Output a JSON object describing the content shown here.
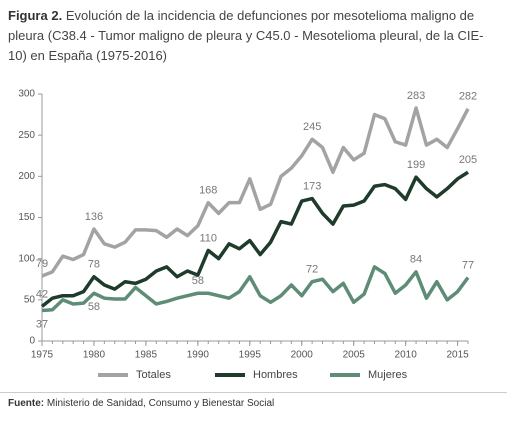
{
  "chart_data": {
    "type": "line",
    "title_label": "Figura 2.",
    "title": "Evolución de la incidencia de defunciones por mesotelioma maligno de pleura (C38.4 - Tumor maligno de pleura y C45.0 - Mesotelioma pleural, de la CIE-10) en España (1975-2016)",
    "source_label": "Fuente:",
    "source": "Ministerio de Sanidad, Consumo y Bienestar Social",
    "x": [
      1975,
      1976,
      1977,
      1978,
      1979,
      1980,
      1981,
      1982,
      1983,
      1984,
      1985,
      1986,
      1987,
      1988,
      1989,
      1990,
      1991,
      1992,
      1993,
      1994,
      1995,
      1996,
      1997,
      1998,
      1999,
      2000,
      2001,
      2002,
      2003,
      2004,
      2005,
      2006,
      2007,
      2008,
      2009,
      2010,
      2011,
      2012,
      2013,
      2014,
      2015,
      2016
    ],
    "xlim": [
      1975,
      2016
    ],
    "xticks": [
      1975,
      1980,
      1985,
      1990,
      1995,
      2000,
      2005,
      2010,
      2015
    ],
    "ylim": [
      0,
      300
    ],
    "yticks": [
      0,
      50,
      100,
      150,
      200,
      250,
      300
    ],
    "legend": "bottom",
    "series": [
      {
        "name": "Totales",
        "color": "#a3a3a3",
        "values": [
          79,
          84,
          103,
          99,
          105,
          136,
          118,
          114,
          120,
          135,
          135,
          134,
          126,
          136,
          128,
          140,
          168,
          155,
          168,
          168,
          197,
          160,
          166,
          200,
          210,
          225,
          245,
          235,
          205,
          235,
          220,
          228,
          275,
          270,
          242,
          238,
          283,
          238,
          245,
          235,
          258,
          282
        ],
        "value_labels": [
          "79",
          null,
          null,
          null,
          null,
          "136",
          null,
          null,
          null,
          null,
          null,
          null,
          null,
          null,
          null,
          null,
          "168",
          null,
          null,
          null,
          null,
          null,
          null,
          null,
          null,
          null,
          "245",
          null,
          null,
          null,
          null,
          null,
          null,
          null,
          null,
          null,
          "283",
          null,
          null,
          null,
          null,
          "282"
        ]
      },
      {
        "name": "Hombres",
        "color": "#1e3b2c",
        "values": [
          42,
          52,
          55,
          55,
          60,
          78,
          68,
          63,
          72,
          70,
          75,
          85,
          90,
          78,
          85,
          80,
          110,
          100,
          118,
          112,
          122,
          105,
          120,
          145,
          142,
          170,
          173,
          155,
          142,
          164,
          165,
          170,
          188,
          190,
          185,
          172,
          199,
          185,
          175,
          185,
          197,
          205
        ],
        "value_labels": [
          "42",
          null,
          null,
          null,
          null,
          "78",
          null,
          null,
          null,
          null,
          null,
          null,
          null,
          null,
          null,
          null,
          "110",
          null,
          null,
          null,
          null,
          null,
          null,
          null,
          null,
          null,
          "173",
          null,
          null,
          null,
          null,
          null,
          null,
          null,
          null,
          null,
          "199",
          null,
          null,
          null,
          null,
          "205"
        ]
      },
      {
        "name": "Mujeres",
        "color": "#5f8c77",
        "values": [
          37,
          38,
          50,
          45,
          46,
          58,
          52,
          51,
          51,
          65,
          55,
          45,
          48,
          52,
          55,
          58,
          58,
          55,
          52,
          60,
          78,
          55,
          47,
          55,
          68,
          55,
          72,
          75,
          60,
          70,
          47,
          57,
          90,
          82,
          58,
          68,
          84,
          52,
          72,
          50,
          60,
          77
        ],
        "value_labels": [
          "37",
          null,
          null,
          null,
          null,
          "58",
          null,
          null,
          null,
          null,
          null,
          null,
          null,
          null,
          null,
          "58",
          null,
          null,
          null,
          null,
          null,
          null,
          null,
          null,
          null,
          null,
          "72",
          null,
          null,
          null,
          null,
          null,
          null,
          null,
          null,
          null,
          "84",
          null,
          null,
          null,
          null,
          "77"
        ]
      }
    ]
  }
}
